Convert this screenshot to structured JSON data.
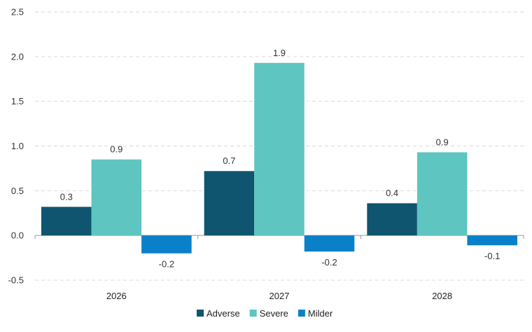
{
  "chart_data": {
    "type": "bar",
    "title": "",
    "xlabel": "",
    "ylabel": "",
    "categories": [
      "2026",
      "2027",
      "2028"
    ],
    "ylim": [
      -0.5,
      2.5
    ],
    "yticks": [
      "-0.5",
      "0.0",
      "0.5",
      "1.0",
      "1.5",
      "2.0",
      "2.5"
    ],
    "grid": true,
    "legend_position": "bottom-center",
    "series": [
      {
        "name": "Adverse",
        "color": "#0f5570",
        "values": [
          0.32,
          0.72,
          0.36
        ],
        "labels": [
          "0.3",
          "0.7",
          "0.4"
        ]
      },
      {
        "name": "Severe",
        "color": "#5ec5c0",
        "values": [
          0.85,
          1.93,
          0.93
        ],
        "labels": [
          "0.9",
          "1.9",
          "0.9"
        ]
      },
      {
        "name": "Milder",
        "color": "#0a80c8",
        "values": [
          -0.2,
          -0.18,
          -0.11
        ],
        "labels": [
          "-0.2",
          "-0.2",
          "-0.1"
        ]
      }
    ]
  }
}
